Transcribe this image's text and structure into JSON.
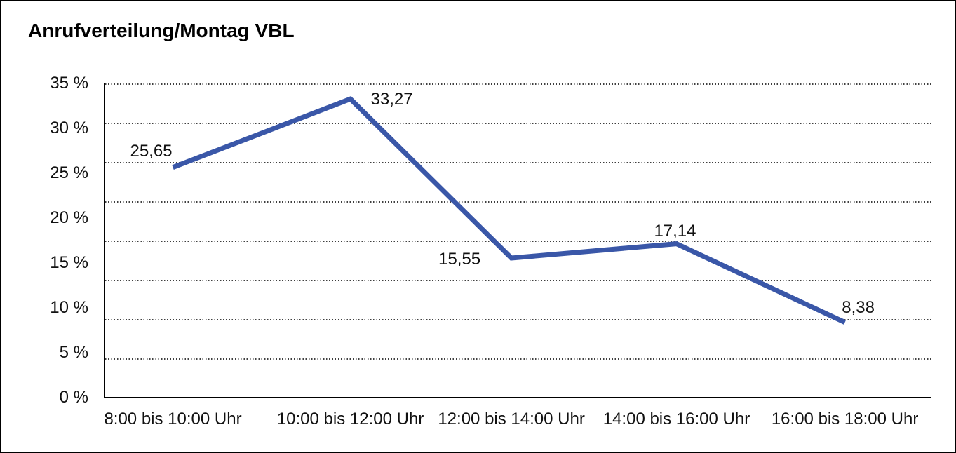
{
  "chart_data": {
    "type": "line",
    "title": "Anrufverteilung/Montag VBL",
    "categories": [
      "8:00 bis 10:00 Uhr",
      "10:00 bis 12:00 Uhr",
      "12:00 bis 14:00 Uhr",
      "14:00 bis 16:00 Uhr",
      "16:00 bis 18:00 Uhr"
    ],
    "values": [
      25.65,
      33.27,
      15.55,
      17.14,
      8.38
    ],
    "value_labels": [
      "25,65",
      "33,27",
      "15,55",
      "17,14",
      "8,38"
    ],
    "y_ticks": [
      "35 %",
      "30 %",
      "25 %",
      "20 %",
      "15 %",
      "10 %",
      "5 %",
      "0 %"
    ],
    "ylim": [
      0,
      35
    ],
    "unit": "%",
    "xlabel": "",
    "ylabel": "",
    "legend": "none",
    "grid": "dotted-horizontal-9-lines",
    "line_color": "#3A57A8",
    "axis_color": "#000000",
    "background_color": "#FFFFFF"
  }
}
